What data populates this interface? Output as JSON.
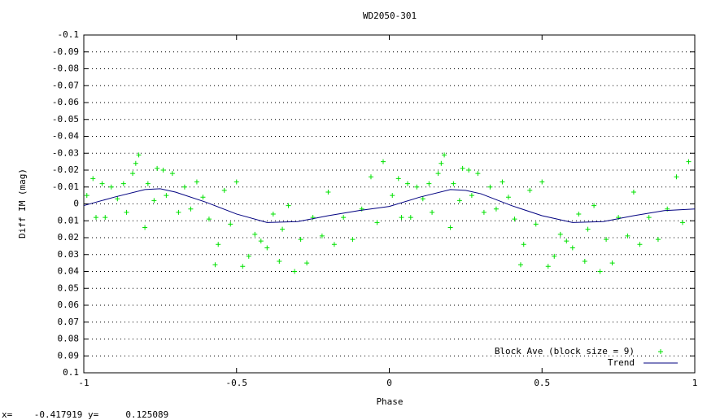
{
  "chart_data": {
    "type": "scatter",
    "title": "WD2050-301",
    "xlabel": "Phase",
    "ylabel": "Diff IM (mag)",
    "xlim": [
      -1,
      1
    ],
    "xticks": [
      -1,
      -0.5,
      0,
      0.5,
      1
    ],
    "ylim": [
      -0.1,
      0.1
    ],
    "y_reversed": true,
    "yticks": [
      -0.1,
      -0.09,
      -0.08,
      -0.07,
      -0.06,
      -0.05,
      -0.04,
      -0.03,
      -0.02,
      -0.01,
      0,
      0.01,
      0.02,
      0.03,
      0.04,
      0.05,
      0.06,
      0.07,
      0.08,
      0.09,
      0.1
    ],
    "grid": true,
    "legend": "bottom-right",
    "series": [
      {
        "name": "Block Ave (block size = 9)",
        "color": "#00e000",
        "marker": "cross",
        "x": [
          -0.99,
          -0.97,
          -0.96,
          -0.94,
          -0.93,
          -0.91,
          -0.89,
          -0.87,
          -0.86,
          -0.84,
          -0.83,
          -0.82,
          -0.8,
          -0.79,
          -0.77,
          -0.76,
          -0.74,
          -0.73,
          -0.71,
          -0.69,
          -0.67,
          -0.65,
          -0.63,
          -0.61,
          -0.59,
          -0.57,
          -0.56,
          -0.54,
          -0.52,
          -0.5,
          -0.48,
          -0.46,
          -0.44,
          -0.42,
          -0.4,
          -0.38,
          -0.36,
          -0.35,
          -0.33,
          -0.31,
          -0.29,
          -0.27,
          -0.25,
          -0.22,
          -0.2,
          -0.18,
          -0.15,
          -0.12,
          -0.09,
          -0.06,
          -0.04,
          -0.02,
          0.01,
          0.03,
          0.04,
          0.06,
          0.07,
          0.09,
          0.11,
          0.13,
          0.14,
          0.16,
          0.17,
          0.18,
          0.2,
          0.21,
          0.23,
          0.24,
          0.26,
          0.27,
          0.29,
          0.31,
          0.33,
          0.35,
          0.37,
          0.39,
          0.41,
          0.43,
          0.44,
          0.46,
          0.48,
          0.5,
          0.52,
          0.54,
          0.56,
          0.58,
          0.6,
          0.62,
          0.64,
          0.65,
          0.67,
          0.69,
          0.71,
          0.73,
          0.75,
          0.78,
          0.8,
          0.82,
          0.85,
          0.88,
          0.91,
          0.94,
          0.96,
          0.98
        ],
        "values": [
          -0.005,
          -0.015,
          0.008,
          -0.012,
          0.008,
          -0.01,
          -0.003,
          -0.012,
          0.005,
          -0.018,
          -0.024,
          -0.029,
          0.014,
          -0.012,
          -0.002,
          -0.021,
          -0.02,
          -0.005,
          -0.018,
          0.005,
          -0.01,
          0.003,
          -0.013,
          -0.004,
          0.009,
          0.036,
          0.024,
          -0.008,
          0.012,
          -0.013,
          0.037,
          0.031,
          0.018,
          0.022,
          0.026,
          0.006,
          0.034,
          0.015,
          0.001,
          0.04,
          0.021,
          0.035,
          0.008,
          0.019,
          -0.007,
          0.024,
          0.008,
          0.021,
          0.003,
          -0.016,
          0.011,
          -0.025,
          -0.005,
          -0.015,
          0.008,
          -0.012,
          0.008,
          -0.01,
          -0.003,
          -0.012,
          0.005,
          -0.018,
          -0.024,
          -0.029,
          0.014,
          -0.012,
          -0.002,
          -0.021,
          -0.02,
          -0.005,
          -0.018,
          0.005,
          -0.01,
          0.003,
          -0.013,
          -0.004,
          0.009,
          0.036,
          0.024,
          -0.008,
          0.012,
          -0.013,
          0.037,
          0.031,
          0.018,
          0.022,
          0.026,
          0.006,
          0.034,
          0.015,
          0.001,
          0.04,
          0.021,
          0.035,
          0.008,
          0.019,
          -0.007,
          0.024,
          0.008,
          0.021,
          0.003,
          -0.016,
          0.011,
          -0.025
        ]
      },
      {
        "name": "Trend",
        "color": "#000080",
        "marker": "line",
        "x": [
          -1,
          -0.9,
          -0.8,
          -0.75,
          -0.7,
          -0.6,
          -0.5,
          -0.4,
          -0.3,
          -0.2,
          -0.1,
          0,
          0.1,
          0.2,
          0.25,
          0.3,
          0.4,
          0.5,
          0.6,
          0.7,
          0.8,
          0.9,
          1
        ],
        "values": [
          0.001,
          -0.004,
          -0.0085,
          -0.009,
          -0.007,
          -0.001,
          0.006,
          0.011,
          0.0105,
          0.007,
          0.004,
          0.0015,
          -0.004,
          -0.0085,
          -0.008,
          -0.006,
          0.001,
          0.007,
          0.011,
          0.0105,
          0.007,
          0.004,
          0.003
        ]
      }
    ]
  },
  "status_bar": "x=    -0.417919 y=     0.125089"
}
